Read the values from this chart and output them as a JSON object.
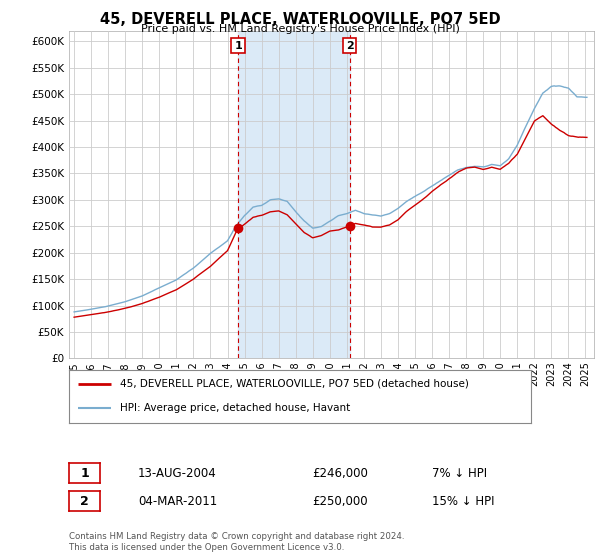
{
  "title": "45, DEVERELL PLACE, WATERLOOVILLE, PO7 5ED",
  "subtitle": "Price paid vs. HM Land Registry's House Price Index (HPI)",
  "red_label": "45, DEVERELL PLACE, WATERLOOVILLE, PO7 5ED (detached house)",
  "blue_label": "HPI: Average price, detached house, Havant",
  "footnote": "Contains HM Land Registry data © Crown copyright and database right 2024.\nThis data is licensed under the Open Government Licence v3.0.",
  "sale1_date": "13-AUG-2004",
  "sale1_price": "£246,000",
  "sale1_note": "7% ↓ HPI",
  "sale2_date": "04-MAR-2011",
  "sale2_price": "£250,000",
  "sale2_note": "15% ↓ HPI",
  "sale1_year": 2004.62,
  "sale2_year": 2011.17,
  "sale1_value": 246000,
  "sale2_value": 250000,
  "ylim": [
    0,
    620000
  ],
  "ytick_max": 600000,
  "ytick_step": 50000,
  "background_color": "#ffffff",
  "plot_bg_color": "#ffffff",
  "shade_color": "#dbeaf7",
  "grid_color": "#cccccc",
  "red_color": "#cc0000",
  "blue_color": "#7aadcf",
  "xstart": 1995,
  "xend": 2025
}
